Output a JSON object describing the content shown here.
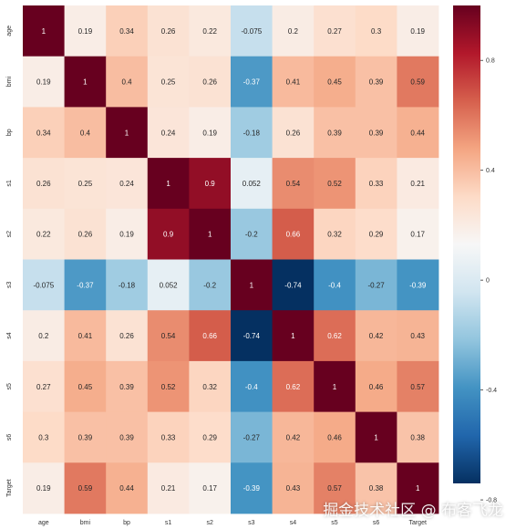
{
  "chart_data": {
    "type": "heatmap",
    "row_labels": [
      "age",
      "bmi",
      "bp",
      "s1",
      "s2",
      "s3",
      "s4",
      "s5",
      "s6",
      "Target"
    ],
    "col_labels": [
      "age",
      "bmi",
      "bp",
      "s1",
      "s2",
      "s3",
      "s4",
      "s5",
      "s6",
      "Target"
    ],
    "values": [
      [
        1,
        0.19,
        0.34,
        0.26,
        0.22,
        -0.075,
        0.2,
        0.27,
        0.3,
        0.19
      ],
      [
        0.19,
        1,
        0.4,
        0.25,
        0.26,
        -0.37,
        0.41,
        0.45,
        0.39,
        0.59
      ],
      [
        0.34,
        0.4,
        1,
        0.24,
        0.19,
        -0.18,
        0.26,
        0.39,
        0.39,
        0.44
      ],
      [
        0.26,
        0.25,
        0.24,
        1,
        0.9,
        0.052,
        0.54,
        0.52,
        0.33,
        0.21
      ],
      [
        0.22,
        0.26,
        0.19,
        0.9,
        1,
        -0.2,
        0.66,
        0.32,
        0.29,
        0.17
      ],
      [
        -0.075,
        -0.37,
        -0.18,
        0.052,
        -0.2,
        1,
        -0.74,
        -0.4,
        -0.27,
        -0.39
      ],
      [
        0.2,
        0.41,
        0.26,
        0.54,
        0.66,
        -0.74,
        1,
        0.62,
        0.42,
        0.43
      ],
      [
        0.27,
        0.45,
        0.39,
        0.52,
        0.32,
        -0.4,
        0.62,
        1,
        0.46,
        0.57
      ],
      [
        0.3,
        0.39,
        0.39,
        0.33,
        0.29,
        -0.27,
        0.42,
        0.46,
        1,
        0.38
      ],
      [
        0.19,
        0.59,
        0.44,
        0.21,
        0.17,
        -0.39,
        0.43,
        0.57,
        0.38,
        1
      ]
    ],
    "cell_labels": [
      [
        "1",
        "0.19",
        "0.34",
        "0.26",
        "0.22",
        "-0.075",
        "0.2",
        "0.27",
        "0.3",
        "0.19"
      ],
      [
        "0.19",
        "1",
        "0.4",
        "0.25",
        "0.26",
        "-0.37",
        "0.41",
        "0.45",
        "0.39",
        "0.59"
      ],
      [
        "0.34",
        "0.4",
        "1",
        "0.24",
        "0.19",
        "-0.18",
        "0.26",
        "0.39",
        "0.39",
        "0.44"
      ],
      [
        "0.26",
        "0.25",
        "0.24",
        "1",
        "0.9",
        "0.052",
        "0.54",
        "0.52",
        "0.33",
        "0.21"
      ],
      [
        "0.22",
        "0.26",
        "0.19",
        "0.9",
        "1",
        "-0.2",
        "0.66",
        "0.32",
        "0.29",
        "0.17"
      ],
      [
        "-0.075",
        "-0.37",
        "-0.18",
        "0.052",
        "-0.2",
        "1",
        "-0.74",
        "-0.4",
        "-0.27",
        "-0.39"
      ],
      [
        "0.2",
        "0.41",
        "0.26",
        "0.54",
        "0.66",
        "-0.74",
        "1",
        "0.62",
        "0.42",
        "0.43"
      ],
      [
        "0.27",
        "0.45",
        "0.39",
        "0.52",
        "0.32",
        "-0.4",
        "0.62",
        "1",
        "0.46",
        "0.57"
      ],
      [
        "0.3",
        "0.39",
        "0.39",
        "0.33",
        "0.29",
        "-0.27",
        "0.42",
        "0.46",
        "1",
        "0.38"
      ],
      [
        "0.19",
        "0.59",
        "0.44",
        "0.21",
        "0.17",
        "-0.39",
        "0.43",
        "0.57",
        "0.38",
        "1"
      ]
    ],
    "colormap": "RdBu_r",
    "vmin": -0.74,
    "vmax": 1,
    "colorbar_ticks": [
      0.8,
      0.4,
      0.0,
      -0.4,
      -0.8
    ],
    "colorbar_tick_labels": [
      "0.8",
      "0.4",
      "0",
      "-0.4",
      "-0.8"
    ],
    "colorbar_position": "right"
  },
  "watermark": "掘金技术社区 @ 布客飞龙"
}
